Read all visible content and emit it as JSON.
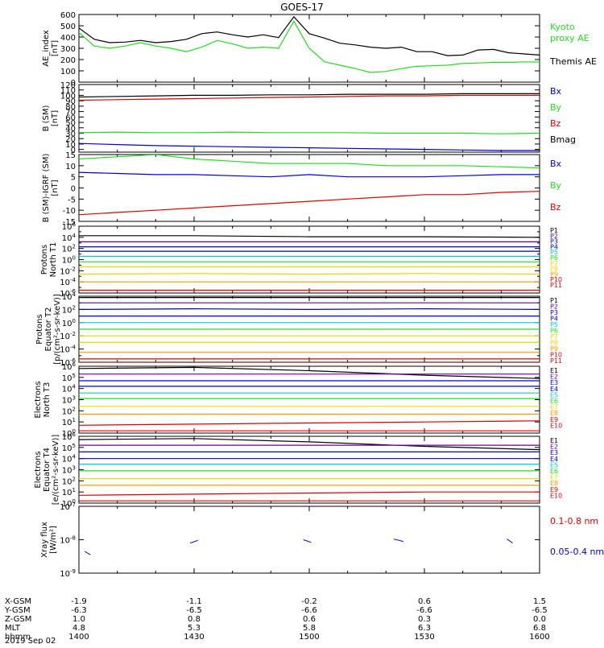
{
  "title": "GOES-17",
  "colors": {
    "black": "#000000",
    "green": "#22dd22",
    "blue": "#0000cc",
    "red": "#dd0000",
    "yellow": "#e6d800",
    "orange": "#ff9900",
    "cyan": "#00cccc",
    "purple": "#660099"
  },
  "x_axis": {
    "ticks": [
      {
        "hhmm": "1400",
        "xgsm": "-1.9",
        "ygsm": "-6.3",
        "zgsm": "1.0",
        "mlt": "4.8"
      },
      {
        "hhmm": "1430",
        "xgsm": "-1.1",
        "ygsm": "-6.5",
        "zgsm": "0.8",
        "mlt": "5.3"
      },
      {
        "hhmm": "1500",
        "xgsm": "-0.2",
        "ygsm": "-6.6",
        "zgsm": "0.6",
        "mlt": "5.8"
      },
      {
        "hhmm": "1530",
        "xgsm": "0.6",
        "ygsm": "-6.6",
        "zgsm": "0.3",
        "mlt": "6.3"
      },
      {
        "hhmm": "1600",
        "xgsm": "1.5",
        "ygsm": "-6.5",
        "zgsm": "0.0",
        "mlt": "6.8"
      }
    ],
    "row_labels": [
      "X-GSM",
      "Y-GSM",
      "Z-GSM",
      "MLT",
      "hhmm"
    ],
    "date": "2019 Sep 02"
  },
  "chart_data": [
    {
      "type": "line",
      "ylabel": "AE_index\n[nT]",
      "ylim": [
        0,
        600
      ],
      "ticks": [
        0,
        100,
        200,
        300,
        400,
        500,
        600
      ],
      "tick_labels": [
        "0",
        "100",
        "200",
        "300",
        "400",
        "500",
        "600"
      ],
      "x_minutes": [
        0,
        4,
        8,
        12,
        16,
        20,
        24,
        28,
        32,
        36,
        40,
        44,
        48,
        52,
        56,
        60,
        64,
        68,
        72,
        76,
        80,
        84,
        88,
        92,
        96,
        100,
        104,
        108,
        112,
        116,
        120
      ],
      "series": [
        {
          "name": "Themis AE",
          "color": "black",
          "values": [
            480,
            380,
            350,
            355,
            370,
            350,
            360,
            380,
            430,
            445,
            420,
            400,
            420,
            395,
            580,
            430,
            390,
            345,
            330,
            310,
            300,
            310,
            270,
            270,
            235,
            240,
            285,
            290,
            260,
            250,
            240
          ]
        },
        {
          "name": "Kyoto\nproxy AE",
          "color": "green",
          "values": [
            440,
            320,
            300,
            320,
            350,
            320,
            300,
            270,
            310,
            370,
            340,
            300,
            310,
            300,
            540,
            300,
            180,
            150,
            120,
            85,
            95,
            120,
            140,
            145,
            150,
            165,
            170,
            175,
            175,
            180,
            178
          ]
        }
      ],
      "legend": [
        "Kyoto\nproxy AE",
        "Themis AE"
      ]
    },
    {
      "type": "line",
      "ylabel": "B (SM)\n[nT]",
      "ylim": [
        -5,
        120
      ],
      "ticks": [
        0,
        10,
        20,
        30,
        40,
        50,
        60,
        70,
        80,
        90,
        100,
        110,
        120
      ],
      "tick_labels": [
        "0",
        "10",
        "20",
        "30",
        "40",
        "50",
        "60",
        "70",
        "80",
        "90",
        "100",
        "110",
        "120"
      ],
      "x_minutes": [
        0,
        10,
        20,
        30,
        40,
        50,
        60,
        70,
        80,
        90,
        100,
        110,
        120
      ],
      "series": [
        {
          "name": "Bx",
          "color": "blue",
          "values": [
            11,
            9,
            7,
            6,
            5,
            4,
            3,
            2,
            1,
            0,
            -1,
            -2,
            -2
          ]
        },
        {
          "name": "By",
          "color": "green",
          "values": [
            31,
            32,
            31,
            31,
            32,
            31,
            31,
            31,
            30,
            30,
            30,
            29,
            30
          ]
        },
        {
          "name": "Bz",
          "color": "red",
          "values": [
            91,
            92,
            93,
            94,
            95,
            96,
            97,
            98,
            99,
            99,
            100,
            100,
            100
          ]
        },
        {
          "name": "Bmag",
          "color": "black",
          "values": [
            97,
            98,
            99,
            100,
            100,
            101,
            101,
            102,
            102,
            102,
            103,
            103,
            103
          ]
        }
      ],
      "legend": [
        "Bx",
        "By",
        "Bz",
        "Bmag"
      ]
    },
    {
      "type": "line",
      "ylabel": "B (SM)-IGRF (SM)\n[nT]",
      "ylim": [
        -15,
        15
      ],
      "ticks": [
        -15,
        -10,
        -5,
        0,
        5,
        10,
        15
      ],
      "tick_labels": [
        "-15",
        "-10",
        "-5",
        "0",
        "5",
        "10",
        "15"
      ],
      "x_minutes": [
        0,
        10,
        20,
        30,
        40,
        50,
        60,
        70,
        80,
        90,
        100,
        110,
        120
      ],
      "series": [
        {
          "name": "Bx",
          "color": "blue",
          "values": [
            7,
            6.5,
            6,
            6,
            5.5,
            5,
            6,
            5,
            5,
            5,
            5.5,
            6,
            6
          ]
        },
        {
          "name": "By",
          "color": "green",
          "values": [
            13,
            14,
            15,
            13,
            12,
            11,
            11,
            11,
            10,
            10,
            10,
            9.5,
            9
          ]
        },
        {
          "name": "Bz",
          "color": "red",
          "values": [
            -12,
            -11,
            -10,
            -9,
            -8,
            -7,
            -6,
            -5,
            -4,
            -3,
            -3,
            -2,
            -1.5
          ]
        }
      ],
      "legend": [
        "Bx",
        "By",
        "Bz"
      ]
    },
    {
      "type": "line",
      "log": true,
      "ylabel": "Protons\nNorth T1",
      "ylim_exp": [
        -6,
        6
      ],
      "tick_exps": [
        -6,
        -4,
        -2,
        0,
        2,
        4,
        6
      ],
      "x_minutes": [
        0,
        30,
        60,
        90,
        120
      ],
      "series": [
        {
          "name": "P1",
          "color": "black",
          "log_values": [
            4.3,
            4.3,
            4.1,
            4.1,
            4.0
          ]
        },
        {
          "name": "P2",
          "color": "purple",
          "log_values": [
            3.2,
            3.2,
            3.2,
            3.2,
            3.2
          ]
        },
        {
          "name": "P3",
          "color": "blue",
          "log_values": [
            2.3,
            2.3,
            2.3,
            2.3,
            2.3
          ]
        },
        {
          "name": "P4",
          "color": "blue",
          "log_values": [
            1.5,
            1.5,
            1.5,
            1.5,
            1.5
          ]
        },
        {
          "name": "P5",
          "color": "cyan",
          "log_values": [
            0.6,
            0.6,
            0.6,
            0.6,
            0.6
          ]
        },
        {
          "name": "P6",
          "color": "green",
          "log_values": [
            -0.4,
            -0.4,
            -0.4,
            -0.4,
            -0.4
          ]
        },
        {
          "name": "P7",
          "color": "yellow",
          "log_values": [
            -1.3,
            -1.3,
            -1.3,
            -1.3,
            -1.3
          ]
        },
        {
          "name": "P8",
          "color": "yellow",
          "log_values": [
            -2.6,
            -2.5,
            -2.6,
            -2.5,
            -2.6
          ]
        },
        {
          "name": "P9",
          "color": "orange",
          "log_values": [
            -4.0,
            -4.0,
            -4.0,
            -4.0,
            -4.0
          ]
        },
        {
          "name": "P10",
          "color": "red",
          "log_values": [
            -5.5,
            -5.5,
            -5.5,
            -5.5,
            -5.5
          ]
        },
        {
          "name": "P11",
          "color": "red",
          "log_values": [
            -6.5,
            -6.5,
            -6.5,
            -6.5,
            -6.5
          ]
        }
      ],
      "legend": [
        "P1",
        "P2",
        "P3",
        "P4",
        "P5",
        "P6",
        "P7",
        "P8",
        "P9",
        "P10",
        "P11"
      ]
    },
    {
      "type": "line",
      "log": true,
      "ylabel": "Protons\nEquator T2\n[p/(cm²-s-sr-keV)]",
      "ylim_exp": [
        -6,
        4
      ],
      "tick_exps": [
        -6,
        -4,
        -2,
        0,
        2,
        4
      ],
      "x_minutes": [
        0,
        30,
        60,
        90,
        120
      ],
      "series": [
        {
          "name": "P1",
          "color": "black",
          "log_values": [
            3.8,
            3.8,
            3.8,
            3.8,
            3.8
          ]
        },
        {
          "name": "P2",
          "color": "purple",
          "log_values": [
            3.0,
            3.0,
            3.0,
            3.0,
            3.0
          ]
        },
        {
          "name": "P3",
          "color": "blue",
          "log_values": [
            2.0,
            2.1,
            2.0,
            2.1,
            2.0
          ]
        },
        {
          "name": "P4",
          "color": "blue",
          "log_values": [
            1.0,
            1.0,
            1.0,
            1.0,
            1.0
          ]
        },
        {
          "name": "P5",
          "color": "cyan",
          "log_values": [
            0.0,
            0.0,
            0.0,
            0.0,
            0.0
          ]
        },
        {
          "name": "P6",
          "color": "green",
          "log_values": [
            -1.0,
            -1.0,
            -1.0,
            -1.0,
            -1.0
          ]
        },
        {
          "name": "P7",
          "color": "yellow",
          "log_values": [
            -2.0,
            -2.0,
            -2.0,
            -2.0,
            -2.0
          ]
        },
        {
          "name": "P8",
          "color": "yellow",
          "log_values": [
            -3.0,
            -3.0,
            -3.0,
            -3.0,
            -3.0
          ]
        },
        {
          "name": "P9",
          "color": "orange",
          "log_values": [
            -4.5,
            -4.5,
            -4.5,
            -4.5,
            -4.5
          ]
        },
        {
          "name": "P10",
          "color": "red",
          "log_values": [
            -5.5,
            -5.5,
            -5.5,
            -5.5,
            -5.5
          ]
        },
        {
          "name": "P11",
          "color": "red",
          "log_values": [
            -6.0,
            -6.0,
            -6.0,
            -6.0,
            -6.0
          ]
        }
      ],
      "legend": [
        "P1",
        "P2",
        "P3",
        "P4",
        "P5",
        "P6",
        "P7",
        "P8",
        "P9",
        "P10",
        "P11"
      ]
    },
    {
      "type": "line",
      "log": true,
      "ylabel": "Electrons\nNorth T3",
      "ylim_exp": [
        0,
        6
      ],
      "tick_exps": [
        0,
        1,
        2,
        3,
        4,
        5,
        6
      ],
      "x_minutes": [
        0,
        30,
        60,
        90,
        120
      ],
      "series": [
        {
          "name": "E1",
          "color": "black",
          "log_values": [
            5.8,
            5.9,
            5.6,
            5.2,
            4.9
          ]
        },
        {
          "name": "E2",
          "color": "purple",
          "log_values": [
            5.3,
            5.3,
            5.3,
            5.3,
            5.3
          ]
        },
        {
          "name": "E3",
          "color": "blue",
          "log_values": [
            4.7,
            4.7,
            4.7,
            4.7,
            4.7
          ]
        },
        {
          "name": "E4",
          "color": "blue",
          "log_values": [
            4.2,
            4.2,
            4.2,
            4.2,
            4.2
          ]
        },
        {
          "name": "E5",
          "color": "cyan",
          "log_values": [
            3.6,
            3.6,
            3.6,
            3.6,
            3.6
          ]
        },
        {
          "name": "E6",
          "color": "green",
          "log_values": [
            3.1,
            3.1,
            3.1,
            3.1,
            3.1
          ]
        },
        {
          "name": "E7",
          "color": "yellow",
          "log_values": [
            2.4,
            2.4,
            2.4,
            2.4,
            2.4
          ]
        },
        {
          "name": "E8",
          "color": "orange",
          "log_values": [
            1.7,
            1.7,
            1.7,
            1.7,
            1.7
          ]
        },
        {
          "name": "E9",
          "color": "red",
          "log_values": [
            0.7,
            0.8,
            0.9,
            1.0,
            1.1
          ]
        },
        {
          "name": "E10",
          "color": "red",
          "log_values": [
            0.2,
            0.2,
            0.2,
            0.2,
            0.2
          ]
        }
      ],
      "legend": [
        "E1",
        "E2",
        "E3",
        "E4",
        "E5",
        "E6",
        "E7",
        "E8",
        "E9",
        "E10"
      ]
    },
    {
      "type": "line",
      "log": true,
      "ylabel": "Electrons\nEquator T4\n[e/(cm²-s-sr-keV)]",
      "ylim_exp": [
        0,
        6
      ],
      "tick_exps": [
        0,
        1,
        2,
        3,
        4,
        5,
        6
      ],
      "x_minutes": [
        0,
        30,
        60,
        90,
        120
      ],
      "series": [
        {
          "name": "E1",
          "color": "black",
          "log_values": [
            5.7,
            5.8,
            5.5,
            5.1,
            4.8
          ]
        },
        {
          "name": "E2",
          "color": "purple",
          "log_values": [
            5.2,
            5.2,
            5.2,
            5.2,
            5.2
          ]
        },
        {
          "name": "E3",
          "color": "blue",
          "log_values": [
            4.6,
            4.6,
            4.6,
            4.6,
            4.6
          ]
        },
        {
          "name": "E4",
          "color": "blue",
          "log_values": [
            4.0,
            4.0,
            4.0,
            4.0,
            4.0
          ]
        },
        {
          "name": "E5",
          "color": "cyan",
          "log_values": [
            3.5,
            3.5,
            3.5,
            3.5,
            3.5
          ]
        },
        {
          "name": "E6",
          "color": "green",
          "log_values": [
            2.9,
            2.9,
            2.9,
            2.9,
            2.9
          ]
        },
        {
          "name": "E7",
          "color": "yellow",
          "log_values": [
            2.2,
            2.2,
            2.2,
            2.2,
            2.2
          ]
        },
        {
          "name": "E8",
          "color": "orange",
          "log_values": [
            1.6,
            1.6,
            1.6,
            1.6,
            1.6
          ]
        },
        {
          "name": "E9",
          "color": "red",
          "log_values": [
            0.7,
            0.8,
            0.9,
            1.0,
            1.0
          ]
        },
        {
          "name": "E10",
          "color": "red",
          "log_values": [
            0.2,
            0.2,
            0.2,
            0.2,
            0.2
          ]
        }
      ],
      "legend": [
        "E1",
        "E2",
        "E3",
        "E4",
        "E5",
        "E6",
        "E7",
        "E8",
        "E9",
        "E10"
      ]
    },
    {
      "type": "line",
      "log": true,
      "ylabel": "Xray flux\n[W/m²]",
      "ylim_exp": [
        -9,
        -7
      ],
      "tick_exps": [
        -9,
        -8,
        -7
      ],
      "series": [
        {
          "name": "0.1-0.8 nm",
          "color": "red",
          "segments": []
        },
        {
          "name": "0.05-0.4 nm",
          "color": "blue",
          "segments": [
            [
              [
                1.5,
                -8.35
              ],
              [
                3.0,
                -8.45
              ]
            ],
            [
              [
                29.0,
                -8.1
              ],
              [
                31.0,
                -8.02
              ]
            ],
            [
              [
                58.5,
                -8.0
              ],
              [
                60.5,
                -8.08
              ]
            ],
            [
              [
                82.0,
                -7.98
              ],
              [
                84.5,
                -8.05
              ]
            ],
            [
              [
                111.5,
                -7.98
              ],
              [
                113.0,
                -8.1
              ]
            ]
          ]
        }
      ],
      "legend": [
        "0.1-0.8 nm",
        "0.05-0.4 nm"
      ]
    }
  ]
}
